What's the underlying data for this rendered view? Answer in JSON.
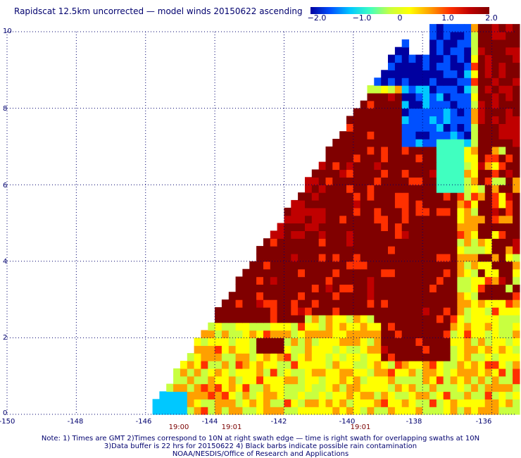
{
  "title": "Rapidscat 12.5km uncorrected — model winds 20150622 ascending",
  "colorbar": {
    "labels": [
      "−2.0",
      "−1.0",
      "0",
      "1.0",
      "2.0"
    ],
    "min": -2.0,
    "max": 2.0,
    "colors": [
      "#0000a0",
      "#0050ff",
      "#00c8ff",
      "#40ffc0",
      "#c8ff40",
      "#ffff00",
      "#ffa000",
      "#ff3000",
      "#c00000",
      "#800000"
    ]
  },
  "map": {
    "lat_labels": [
      "0",
      "2",
      "4",
      "6",
      "8",
      "10"
    ],
    "lon_labels": [
      "-150",
      "-148",
      "-146",
      "-144",
      "-142",
      "-140",
      "-138",
      "-136"
    ],
    "time_labels": [
      "19:00",
      "19:01",
      "19:01"
    ],
    "lat_range": [
      0,
      10
    ],
    "lon_range": [
      -150,
      -135.3
    ],
    "gridlines": "dotted",
    "swath_edge": [
      [
        -145.8,
        0
      ],
      [
        -138.2,
        10
      ]
    ],
    "field": {
      "dark_red_core": "large region of +2.0 differences between 2N and 8N, -142 to -136",
      "blue_region": "negative differences near -138 to -137, 7.5N to 10N",
      "mixed_yellow_green": "scattered -0.5 to +0.5 in the southern swath"
    }
  },
  "notes": [
    "Note: 1) Times are GMT 2)Times correspond to 10N at right swath edge — time is right swath for overlapping swaths at 10N",
    "3)Data buffer is 22 hrs for 20150622 4) Black barbs indicate possible rain contamination",
    "NOAA/NESDIS/Office of Research and Applications"
  ]
}
